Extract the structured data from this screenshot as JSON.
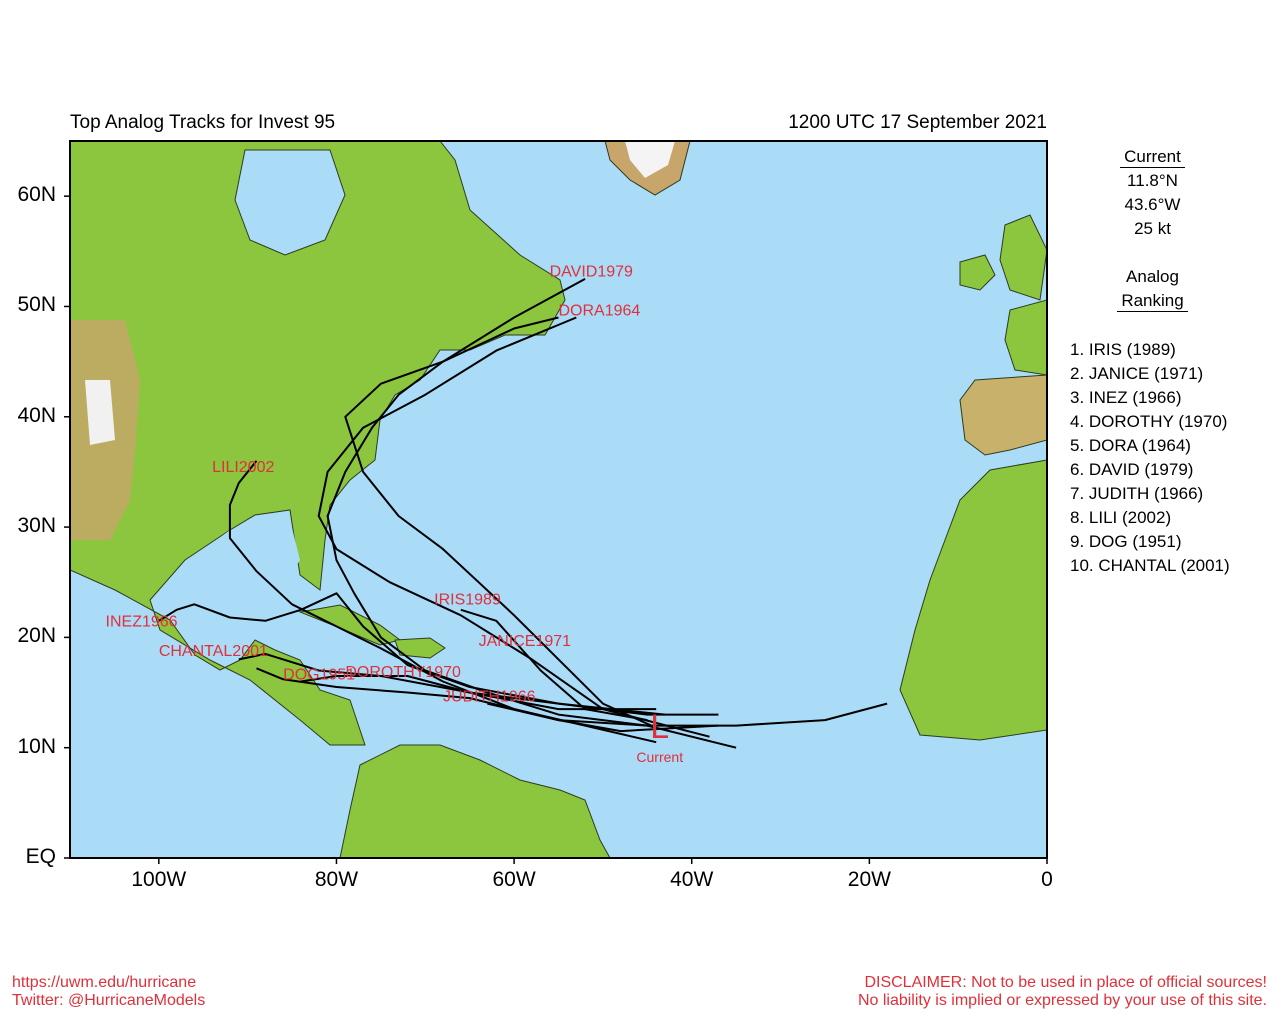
{
  "title": "Top Analog Tracks for Invest 95",
  "datetime": "1200 UTC 17 September 2021",
  "y_axis_labels": [
    "60N",
    "50N",
    "40N",
    "30N",
    "20N",
    "10N",
    "EQ"
  ],
  "x_axis_labels": [
    "100W",
    "80W",
    "60W",
    "40W",
    "20W",
    "0"
  ],
  "current": {
    "heading": "Current",
    "lat": "11.8°N",
    "lon": "43.6°W",
    "wind": "25 kt",
    "marker": "L",
    "marker_label": "Current",
    "position": [
      -43.6,
      11.8
    ]
  },
  "analog_heading_1": "Analog",
  "analog_heading_2": "Ranking",
  "ranking": [
    "1.  IRIS (1989)",
    "2.  JANICE (1971)",
    "3.  INEZ (1966)",
    "4.  DOROTHY (1970)",
    "5.  DORA (1964)",
    "6.  DAVID (1979)",
    "7.  JUDITH (1966)",
    "8.  LILI (2002)",
    "9.  DOG (1951)",
    "10. CHANTAL (2001)"
  ],
  "map_extent": {
    "lon": [
      -110,
      0
    ],
    "lat": [
      0,
      65
    ]
  },
  "colors": {
    "ocean": "#aadcf8",
    "land": "#8cc63f",
    "track": "#000000",
    "label": "#e0303a"
  },
  "tracks": [
    {
      "label": "IRIS1989",
      "points": [
        [
          -45,
          12.5
        ],
        [
          -52,
          13.5
        ],
        [
          -57,
          17
        ],
        [
          -62,
          21.5
        ],
        [
          -66,
          22.5
        ]
      ]
    },
    {
      "label": "JANICE1971",
      "points": [
        [
          -44,
          11.8
        ],
        [
          -50,
          14
        ],
        [
          -55,
          18
        ],
        [
          -60,
          22
        ],
        [
          -64,
          25
        ],
        [
          -68,
          28
        ],
        [
          -73,
          31
        ],
        [
          -77,
          35
        ],
        [
          -79,
          40
        ],
        [
          -75,
          43
        ],
        [
          -68,
          45
        ],
        [
          -60,
          48
        ],
        [
          -55,
          49
        ]
      ]
    },
    {
      "label": "INEZ1966",
      "points": [
        [
          -43,
          13
        ],
        [
          -55,
          14
        ],
        [
          -65,
          15.5
        ],
        [
          -72,
          17.5
        ],
        [
          -77,
          21
        ],
        [
          -80,
          24
        ],
        [
          -84,
          22.5
        ],
        [
          -88,
          21.5
        ],
        [
          -92,
          21.8
        ],
        [
          -96,
          23
        ],
        [
          -98,
          22.5
        ],
        [
          -100,
          21.5
        ]
      ]
    },
    {
      "label": "DOROTHY1970",
      "points": [
        [
          -37,
          13
        ],
        [
          -45,
          13
        ],
        [
          -55,
          14
        ],
        [
          -65,
          15
        ],
        [
          -72,
          16.5
        ],
        [
          -80,
          16.5
        ],
        [
          -84,
          16
        ]
      ]
    },
    {
      "label": "DORA1964",
      "points": [
        [
          -38,
          11
        ],
        [
          -50,
          13.5
        ],
        [
          -58,
          18
        ],
        [
          -66,
          22
        ],
        [
          -74,
          25
        ],
        [
          -80,
          28
        ],
        [
          -82,
          31
        ],
        [
          -81,
          35
        ],
        [
          -77,
          39
        ],
        [
          -70,
          42
        ],
        [
          -62,
          46
        ],
        [
          -53,
          49
        ]
      ]
    },
    {
      "label": "DAVID1979",
      "points": [
        [
          -35,
          10
        ],
        [
          -45,
          12
        ],
        [
          -55,
          13
        ],
        [
          -63,
          15
        ],
        [
          -70,
          17
        ],
        [
          -75,
          20
        ],
        [
          -78,
          24
        ],
        [
          -80,
          27
        ],
        [
          -81,
          31
        ],
        [
          -79,
          35
        ],
        [
          -76,
          39
        ],
        [
          -73,
          42
        ],
        [
          -68,
          45
        ],
        [
          -60,
          49
        ],
        [
          -52,
          52.5
        ]
      ]
    },
    {
      "label": "JUDITH1966",
      "points": [
        [
          -37,
          12
        ],
        [
          -48,
          11.5
        ],
        [
          -55,
          12.5
        ],
        [
          -63,
          14
        ]
      ]
    },
    {
      "label": "LILI2002",
      "points": [
        [
          -44,
          10.5
        ],
        [
          -52,
          12
        ],
        [
          -60,
          13.5
        ],
        [
          -68,
          16
        ],
        [
          -75,
          19
        ],
        [
          -80,
          21
        ],
        [
          -85,
          23
        ],
        [
          -89,
          26
        ],
        [
          -92,
          29
        ],
        [
          -92,
          32
        ],
        [
          -91,
          34
        ],
        [
          -89,
          36
        ]
      ]
    },
    {
      "label": "DOG1951",
      "points": [
        [
          -18,
          14
        ],
        [
          -25,
          12.5
        ],
        [
          -35,
          12
        ],
        [
          -45,
          12
        ],
        [
          -55,
          12.5
        ],
        [
          -65,
          14.5
        ],
        [
          -72,
          15
        ],
        [
          -80,
          15.5
        ],
        [
          -86,
          16.2
        ],
        [
          -89,
          17.2
        ]
      ]
    },
    {
      "label": "CHANTAL2001",
      "points": [
        [
          -44,
          13.5
        ],
        [
          -55,
          13.5
        ],
        [
          -65,
          15
        ],
        [
          -75,
          16.5
        ],
        [
          -82,
          17
        ],
        [
          -86,
          18
        ],
        [
          -88,
          18.5
        ],
        [
          -91,
          18
        ]
      ]
    }
  ],
  "track_labels": [
    {
      "text": "DAVID1979",
      "pos": [
        -56,
        52.7
      ]
    },
    {
      "text": "DORA1964",
      "pos": [
        -55,
        49.2
      ]
    },
    {
      "text": "LILI2002",
      "pos": [
        -94,
        35
      ]
    },
    {
      "text": "IRIS1989",
      "pos": [
        -69,
        23
      ]
    },
    {
      "text": "JANICE1971",
      "pos": [
        -64,
        19.2
      ]
    },
    {
      "text": "INEZ1966",
      "pos": [
        -106,
        21
      ]
    },
    {
      "text": "CHANTAL2001",
      "pos": [
        -100,
        18.3
      ]
    },
    {
      "text": "DOG1951",
      "pos": [
        -86,
        16.2
      ]
    },
    {
      "text": "DOROTHY1970",
      "pos": [
        -79,
        16.4
      ]
    },
    {
      "text": "JUDITH1966",
      "pos": [
        -68,
        14.2
      ]
    }
  ],
  "footer": {
    "url": "https://uwm.edu/hurricane",
    "twitter": "Twitter: @HurricaneModels",
    "disclaimer_1": "DISCLAIMER: Not to be used in place of official sources!",
    "disclaimer_2": "No liability is implied or expressed by your use of this site."
  }
}
